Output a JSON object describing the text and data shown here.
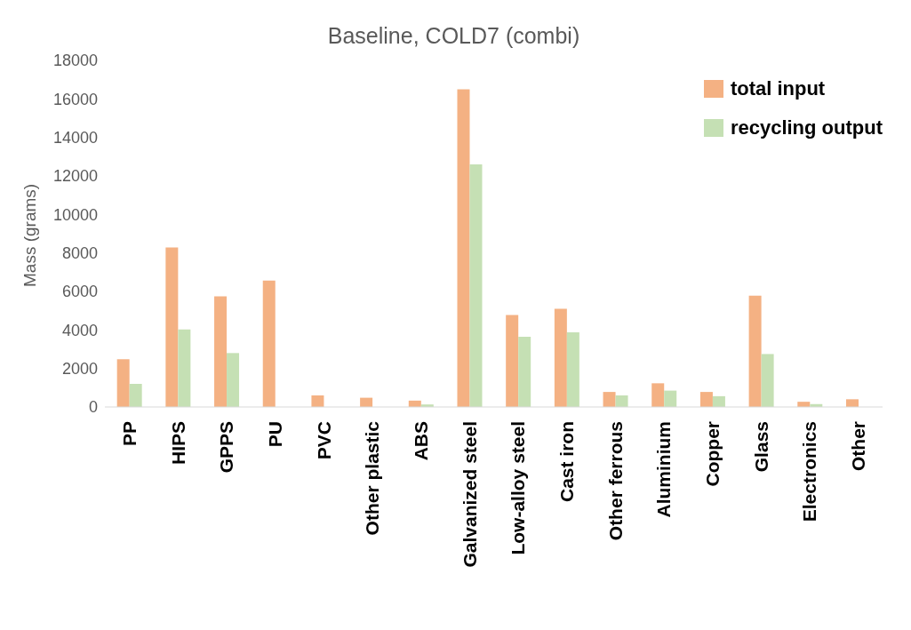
{
  "chart_data": {
    "type": "bar",
    "title": "Baseline, COLD7 (combi)",
    "ylabel": "Mass (grams)",
    "categories": [
      "PP",
      "HIPS",
      "GPPS",
      "PU",
      "PVC",
      "Other plastic",
      "ABS",
      "Galvanized steel",
      "Low-alloy steel",
      "Cast iron",
      "Other ferrous",
      "Aluminium",
      "Copper",
      "Glass",
      "Electronics",
      "Other"
    ],
    "series": [
      {
        "name": "total input",
        "color": "#f4b183",
        "values": [
          2480,
          8280,
          5750,
          6570,
          600,
          480,
          330,
          16500,
          4780,
          5100,
          780,
          1230,
          780,
          5780,
          270,
          400
        ]
      },
      {
        "name": "recycling output",
        "color": "#c5e0b4",
        "values": [
          1200,
          4030,
          2800,
          0,
          0,
          0,
          130,
          12600,
          3650,
          3880,
          600,
          850,
          560,
          2750,
          150,
          0
        ]
      }
    ],
    "ylim": [
      0,
      18000
    ],
    "yticks": [
      0,
      2000,
      4000,
      6000,
      8000,
      10000,
      12000,
      14000,
      16000,
      18000
    ],
    "legend": "top right"
  }
}
